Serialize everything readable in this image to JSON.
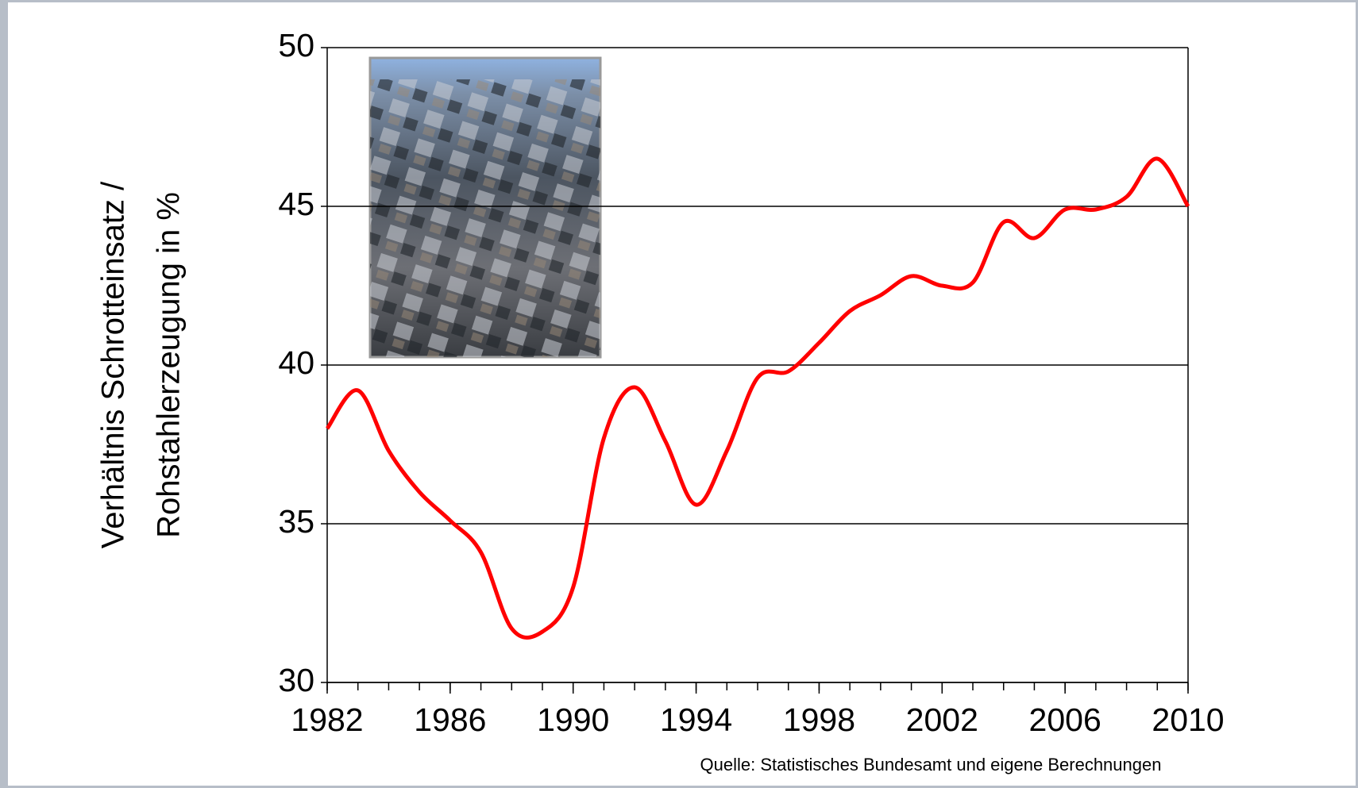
{
  "chart_data": {
    "type": "line",
    "ylabel": [
      "Verhältnis Schrotteinsatz /",
      "Rohstahlerzeugung in %"
    ],
    "source": "Quelle: Statistisches Bundesamt und eigene Berechnungen",
    "x": [
      1982,
      1983,
      1984,
      1985,
      1986,
      1987,
      1988,
      1989,
      1990,
      1991,
      1992,
      1993,
      1994,
      1995,
      1996,
      1997,
      1998,
      1999,
      2000,
      2001,
      2002,
      2003,
      2004,
      2005,
      2006,
      2007,
      2008,
      2009,
      2010
    ],
    "series": [
      {
        "color": "#ff0000",
        "values": [
          38.0,
          39.2,
          37.3,
          36.0,
          35.1,
          34.1,
          31.7,
          31.6,
          33.0,
          37.7,
          39.3,
          37.6,
          35.6,
          37.3,
          39.6,
          39.8,
          40.7,
          41.7,
          42.2,
          42.8,
          42.5,
          42.6,
          44.5,
          44.0,
          44.9,
          44.9,
          45.3,
          46.5,
          45.0
        ]
      }
    ],
    "xlim": [
      1982,
      2010
    ],
    "xticks": [
      1982,
      1986,
      1990,
      1994,
      1998,
      2002,
      2006,
      2010
    ],
    "ylim": [
      30,
      50
    ],
    "yticks": [
      30,
      35,
      40,
      45,
      50
    ],
    "grid": true
  }
}
